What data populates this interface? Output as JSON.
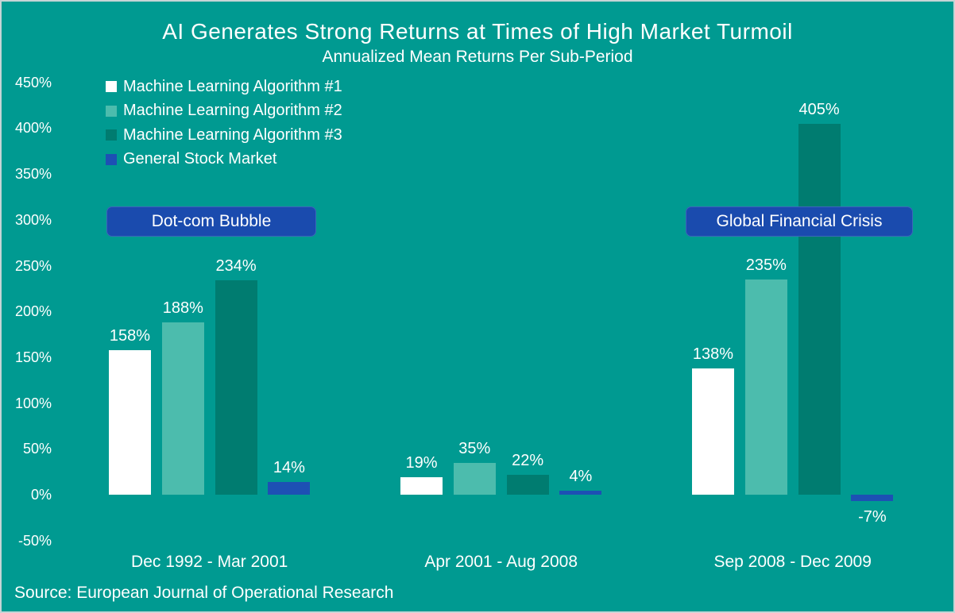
{
  "slide": {
    "title": "AI Generates Strong Returns at Times of High Market Turmoil",
    "subtitle": "Annualized Mean Returns Per Sub-Period",
    "source": "Source: European Journal of Operational Research"
  },
  "colors": {
    "background": "#009a91",
    "border": "#c6d4d5",
    "text": "#ffffff",
    "series1": "#ffffff",
    "series2": "#4cbcad",
    "series3": "#007c70",
    "series4": "#1d50b4",
    "annotation_bg": "#1a4bae"
  },
  "chart_data": {
    "type": "bar",
    "title": "AI Generates Strong Returns at Times of High Market Turmoil",
    "subtitle": "Annualized Mean Returns Per Sub-Period",
    "categories": [
      "Dec 1992 - Mar 2001",
      "Apr 2001 - Aug 2008",
      "Sep 2008 - Dec 2009"
    ],
    "series": [
      {
        "name": "Machine Learning Algorithm #1",
        "color": "#ffffff",
        "values": [
          158,
          19,
          138
        ]
      },
      {
        "name": "Machine Learning Algorithm #2",
        "color": "#4cbcad",
        "values": [
          188,
          35,
          235
        ]
      },
      {
        "name": "Machine Learning Algorithm #3",
        "color": "#007c70",
        "values": [
          234,
          22,
          405
        ]
      },
      {
        "name": "General Stock Market",
        "color": "#1d50b4",
        "values": [
          14,
          4,
          -7
        ]
      }
    ],
    "ylabel": "",
    "xlabel": "",
    "ylim": [
      -50,
      450
    ],
    "ytick_step": 50,
    "ytick_suffix": "%",
    "data_label_suffix": "%",
    "grid": false,
    "legend_position": "top-left",
    "data_labels": true,
    "annotations": [
      {
        "label": "Dot-com Bubble",
        "category_index": 0
      },
      {
        "label": "Global Financial Crisis",
        "category_index": 2
      }
    ]
  }
}
